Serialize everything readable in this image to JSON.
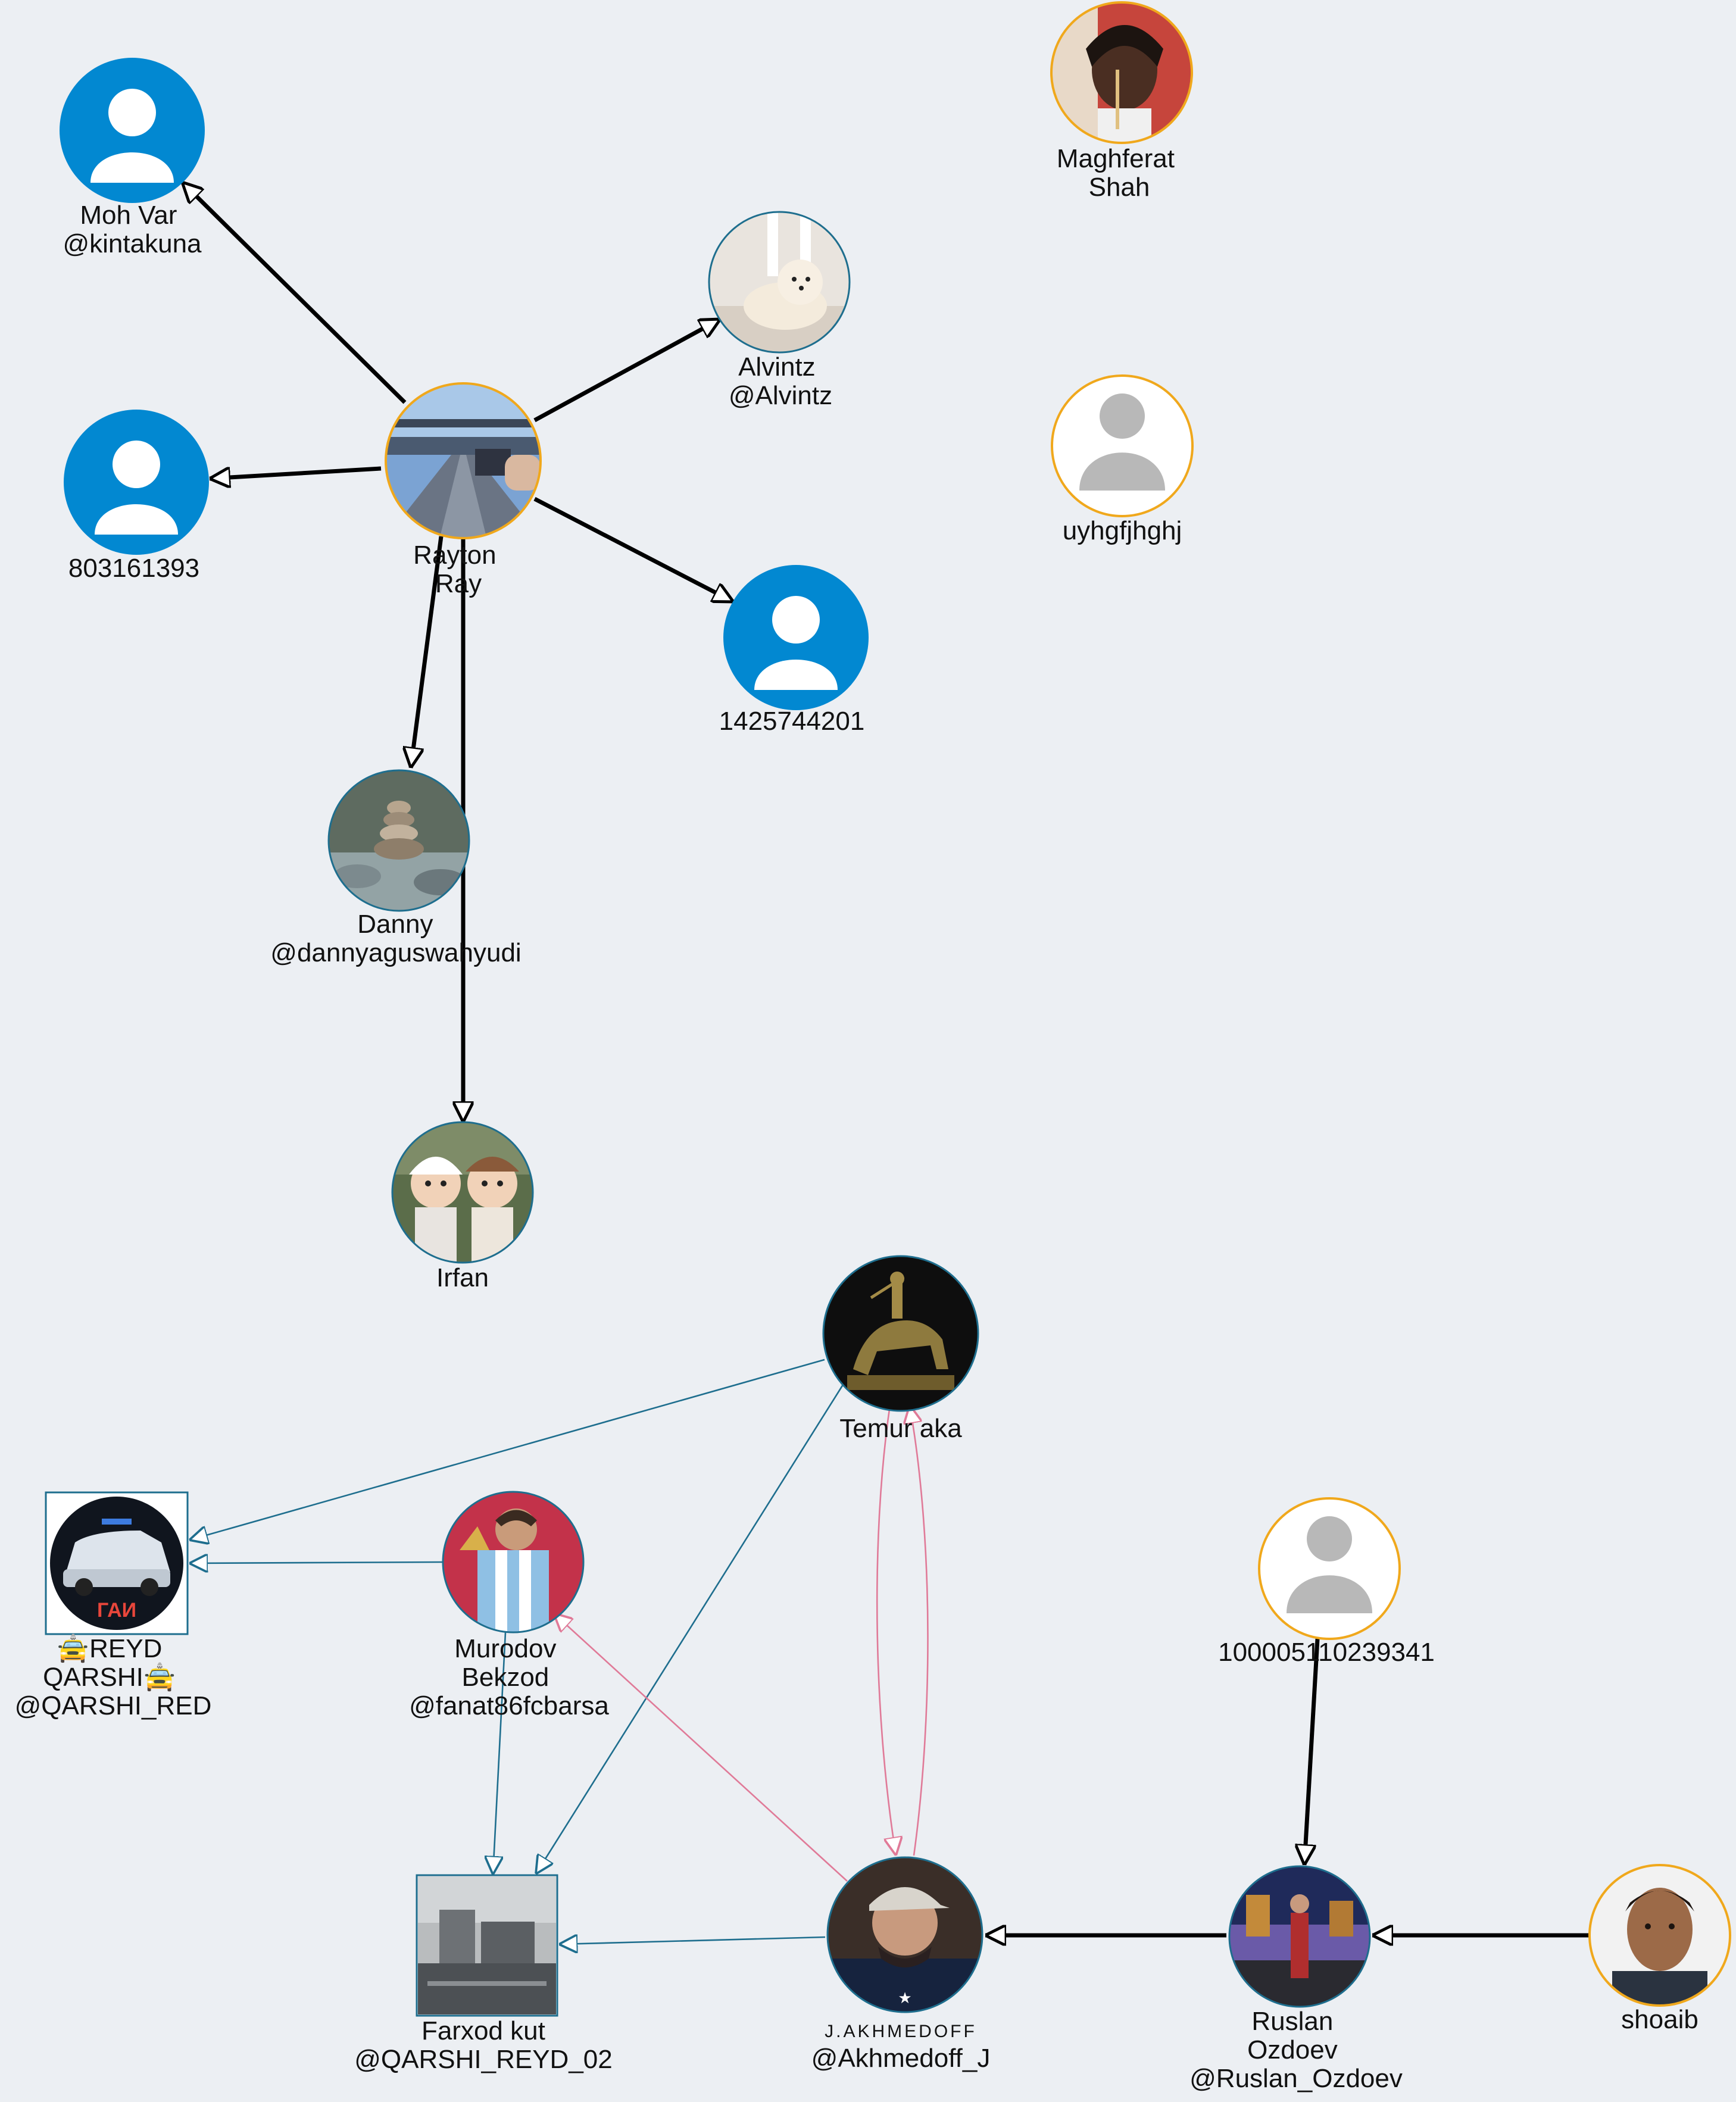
{
  "colors": {
    "background": "#ECEFF3",
    "edge_black": "#000000",
    "edge_blue": "#1E6E8E",
    "edge_pink": "#E07A98",
    "avatar_blue": "#0288D1",
    "ring_blue": "#1E6E8E",
    "ring_orange": "#F0A81C",
    "placeholder_gray": "#B8B8B8"
  },
  "nodes": [
    {
      "id": "mohvar",
      "lines": [
        "Moh Var",
        "@kintakuna"
      ],
      "avatar": "blue-person-icon"
    },
    {
      "id": "n803",
      "lines": [
        "803161393"
      ],
      "avatar": "blue-person-icon"
    },
    {
      "id": "rayton",
      "lines": [
        "Rayton",
        "Ray"
      ],
      "avatar": "photo-road"
    },
    {
      "id": "alvintz",
      "lines": [
        "Alvintz",
        "@Alvintz"
      ],
      "avatar": "photo-dog"
    },
    {
      "id": "n1425",
      "lines": [
        "1425744201"
      ],
      "avatar": "blue-person-icon"
    },
    {
      "id": "danny",
      "lines": [
        "Danny",
        "@dannyaguswahyudi"
      ],
      "avatar": "photo-stones"
    },
    {
      "id": "irfan",
      "lines": [
        "Irfan"
      ],
      "avatar": "photo-dolls"
    },
    {
      "id": "maghferat",
      "lines": [
        "Maghferat",
        "Shah"
      ],
      "avatar": "photo-woman"
    },
    {
      "id": "uyhg",
      "lines": [
        "uyhgfjhghj"
      ],
      "avatar": "gray-person-icon"
    },
    {
      "id": "temur",
      "lines": [
        "Temur aka"
      ],
      "avatar": "photo-statue"
    },
    {
      "id": "reyd",
      "lines": [
        "🚖REYD",
        "QARSHI🚖",
        "@QARSHI_RED"
      ],
      "avatar": "photo-car-logo"
    },
    {
      "id": "murodov",
      "lines": [
        "Murodov",
        "Bekzod",
        "@fanat86fcbarsa"
      ],
      "avatar": "photo-football"
    },
    {
      "id": "n1000",
      "lines": [
        "100005110239341"
      ],
      "avatar": "gray-person-icon"
    },
    {
      "id": "farxod",
      "lines": [
        "Farxod kut",
        "@QARSHI_REYD_02"
      ],
      "avatar": "photo-city"
    },
    {
      "id": "akhmedoff",
      "lines": [
        "@Akhmedoff_J"
      ],
      "avatar": "photo-man-cap",
      "overlay_text": "J.AKHMEDOFF"
    },
    {
      "id": "ruslan",
      "lines": [
        "Ruslan",
        "Ozdoev",
        "@Ruslan_Ozdoev"
      ],
      "avatar": "photo-city-night"
    },
    {
      "id": "shoaib",
      "lines": [
        "shoaib"
      ],
      "avatar": "photo-man"
    }
  ],
  "edges": [
    {
      "from": "rayton",
      "to": "mohvar",
      "style": "black"
    },
    {
      "from": "rayton",
      "to": "n803",
      "style": "black"
    },
    {
      "from": "rayton",
      "to": "alvintz",
      "style": "black"
    },
    {
      "from": "rayton",
      "to": "n1425",
      "style": "black"
    },
    {
      "from": "rayton",
      "to": "danny",
      "style": "black"
    },
    {
      "from": "rayton",
      "to": "irfan",
      "style": "black"
    },
    {
      "from": "n1000",
      "to": "ruslan",
      "style": "black"
    },
    {
      "from": "shoaib",
      "to": "ruslan",
      "style": "black"
    },
    {
      "from": "ruslan",
      "to": "akhmedoff",
      "style": "black"
    },
    {
      "from": "temur",
      "to": "reyd",
      "style": "blue"
    },
    {
      "from": "murodov",
      "to": "reyd",
      "style": "blue"
    },
    {
      "from": "temur",
      "to": "farxod",
      "style": "blue"
    },
    {
      "from": "murodov",
      "to": "farxod",
      "style": "blue"
    },
    {
      "from": "akhmedoff",
      "to": "farxod",
      "style": "blue"
    },
    {
      "from": "akhmedoff",
      "to": "murodov",
      "style": "pink"
    },
    {
      "from": "temur",
      "to": "akhmedoff",
      "style": "pink"
    },
    {
      "from": "akhmedoff",
      "to": "temur",
      "style": "pink"
    }
  ]
}
